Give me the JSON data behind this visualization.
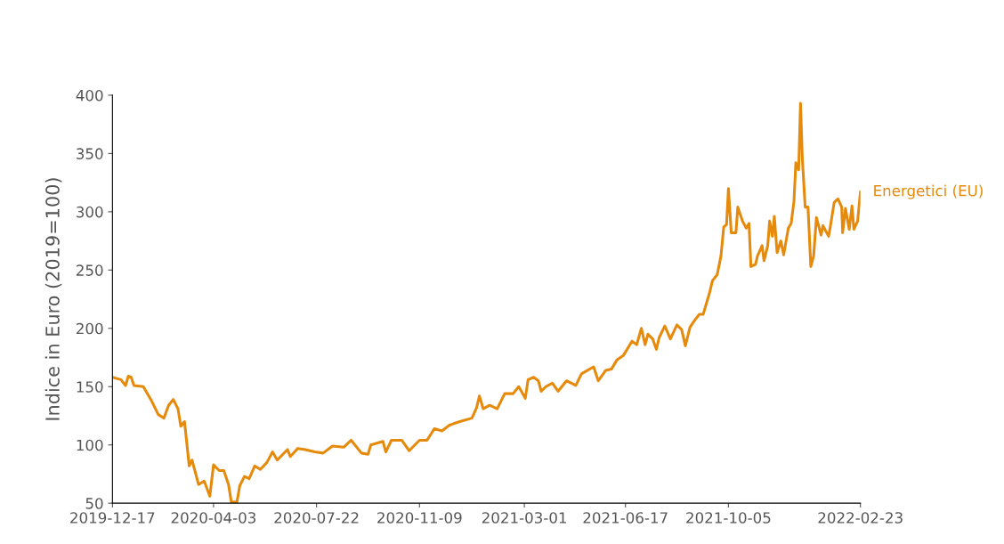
{
  "chart_data": {
    "type": "line",
    "ylabel": "Indice in Euro (2019=100)",
    "xlim": [
      "2019-12-17",
      "2022-02-23"
    ],
    "xticks": [
      "2019-12-17",
      "2020-04-03",
      "2020-07-22",
      "2020-11-09",
      "2021-03-01",
      "2021-06-17",
      "2021-10-05",
      "2022-02-23"
    ],
    "ylim": [
      50,
      400
    ],
    "yticks": [
      50,
      100,
      150,
      200,
      250,
      300,
      350,
      400
    ],
    "grid": false,
    "legend": false,
    "marker": "none",
    "line_style": "solid",
    "series": [
      {
        "name": "Energetici (EU)",
        "color": "#e68a0c",
        "x": [
          "2019-12-17",
          "2019-12-26",
          "2019-12-31",
          "2020-01-03",
          "2020-01-06",
          "2020-01-09",
          "2020-01-19",
          "2020-01-27",
          "2020-02-04",
          "2020-02-10",
          "2020-02-15",
          "2020-02-20",
          "2020-02-25",
          "2020-02-28",
          "2020-03-03",
          "2020-03-08",
          "2020-03-11",
          "2020-03-18",
          "2020-03-24",
          "2020-03-30",
          "2020-04-03",
          "2020-04-09",
          "2020-04-14",
          "2020-04-19",
          "2020-04-22",
          "2020-04-28",
          "2020-05-01",
          "2020-05-06",
          "2020-05-11",
          "2020-05-17",
          "2020-05-23",
          "2020-05-30",
          "2020-06-05",
          "2020-06-10",
          "2020-06-21",
          "2020-06-24",
          "2020-07-02",
          "2020-07-10",
          "2020-07-20",
          "2020-07-29",
          "2020-08-08",
          "2020-08-20",
          "2020-08-28",
          "2020-09-08",
          "2020-09-15",
          "2020-09-18",
          "2020-10-01",
          "2020-10-04",
          "2020-10-10",
          "2020-10-21",
          "2020-10-29",
          "2020-11-04",
          "2020-11-09",
          "2020-11-17",
          "2020-11-25",
          "2020-12-03",
          "2020-12-11",
          "2020-12-22",
          "2021-01-04",
          "2021-01-09",
          "2021-01-12",
          "2021-01-16",
          "2021-01-23",
          "2021-01-31",
          "2021-02-08",
          "2021-02-17",
          "2021-02-23",
          "2021-03-02",
          "2021-03-05",
          "2021-03-11",
          "2021-03-16",
          "2021-03-19",
          "2021-03-24",
          "2021-03-31",
          "2021-04-06",
          "2021-04-15",
          "2021-04-25",
          "2021-05-01",
          "2021-05-14",
          "2021-05-19",
          "2021-05-27",
          "2021-06-02",
          "2021-06-08",
          "2021-06-15",
          "2021-06-24",
          "2021-06-29",
          "2021-07-04",
          "2021-07-08",
          "2021-07-11",
          "2021-07-16",
          "2021-07-20",
          "2021-07-23",
          "2021-07-29",
          "2021-08-04",
          "2021-08-11",
          "2021-08-16",
          "2021-08-20",
          "2021-08-25",
          "2021-08-30",
          "2021-09-04",
          "2021-09-08",
          "2021-09-15",
          "2021-09-18",
          "2021-09-23",
          "2021-09-27",
          "2021-09-30",
          "2021-10-03",
          "2021-10-05",
          "2021-10-08",
          "2021-10-13",
          "2021-10-15",
          "2021-10-20",
          "2021-10-24",
          "2021-10-27",
          "2021-10-29",
          "2021-11-03",
          "2021-11-05",
          "2021-11-10",
          "2021-11-12",
          "2021-11-16",
          "2021-11-18",
          "2021-11-21",
          "2021-11-23",
          "2021-11-26",
          "2021-11-30",
          "2021-12-03",
          "2021-12-08",
          "2021-12-11",
          "2021-12-14",
          "2021-12-16",
          "2021-12-19",
          "2021-12-21",
          "2021-12-23",
          "2021-12-26",
          "2021-12-29",
          "2022-01-01",
          "2022-01-04",
          "2022-01-07",
          "2022-01-12",
          "2022-01-14",
          "2022-01-20",
          "2022-01-22",
          "2022-01-26",
          "2022-01-30",
          "2022-02-03",
          "2022-02-04",
          "2022-02-07",
          "2022-02-11",
          "2022-02-14",
          "2022-02-16",
          "2022-02-20",
          "2022-02-23"
        ],
        "values": [
          158,
          156,
          151,
          159,
          158,
          151,
          150,
          139,
          126,
          123,
          134,
          139,
          131,
          116,
          120,
          82,
          87,
          66,
          69,
          56,
          83,
          78,
          78,
          66,
          51,
          51,
          65,
          73,
          71,
          82,
          79,
          85,
          94,
          87,
          96,
          90,
          97,
          96,
          94,
          93,
          99,
          98,
          104,
          93,
          92,
          100,
          103,
          94,
          104,
          104,
          95,
          100,
          104,
          104,
          114,
          112,
          117,
          120,
          123,
          132,
          142,
          131,
          134,
          131,
          144,
          144,
          150,
          140,
          156,
          158,
          155,
          146,
          150,
          153,
          146,
          155,
          151,
          161,
          167,
          155,
          164,
          165,
          173,
          177,
          189,
          186,
          200,
          186,
          195,
          191,
          182,
          192,
          202,
          191,
          203,
          199,
          185,
          201,
          207,
          212,
          212,
          231,
          241,
          246,
          262,
          287,
          289,
          320,
          282,
          282,
          304,
          292,
          286,
          290,
          253,
          255,
          262,
          271,
          258,
          271,
          292,
          279,
          296,
          265,
          275,
          263,
          286,
          290,
          309,
          342,
          336,
          393,
          345,
          304,
          304,
          253,
          262,
          295,
          280,
          288,
          279,
          288,
          308,
          311,
          304,
          282,
          303,
          285,
          305,
          285,
          292,
          317
        ]
      }
    ]
  }
}
